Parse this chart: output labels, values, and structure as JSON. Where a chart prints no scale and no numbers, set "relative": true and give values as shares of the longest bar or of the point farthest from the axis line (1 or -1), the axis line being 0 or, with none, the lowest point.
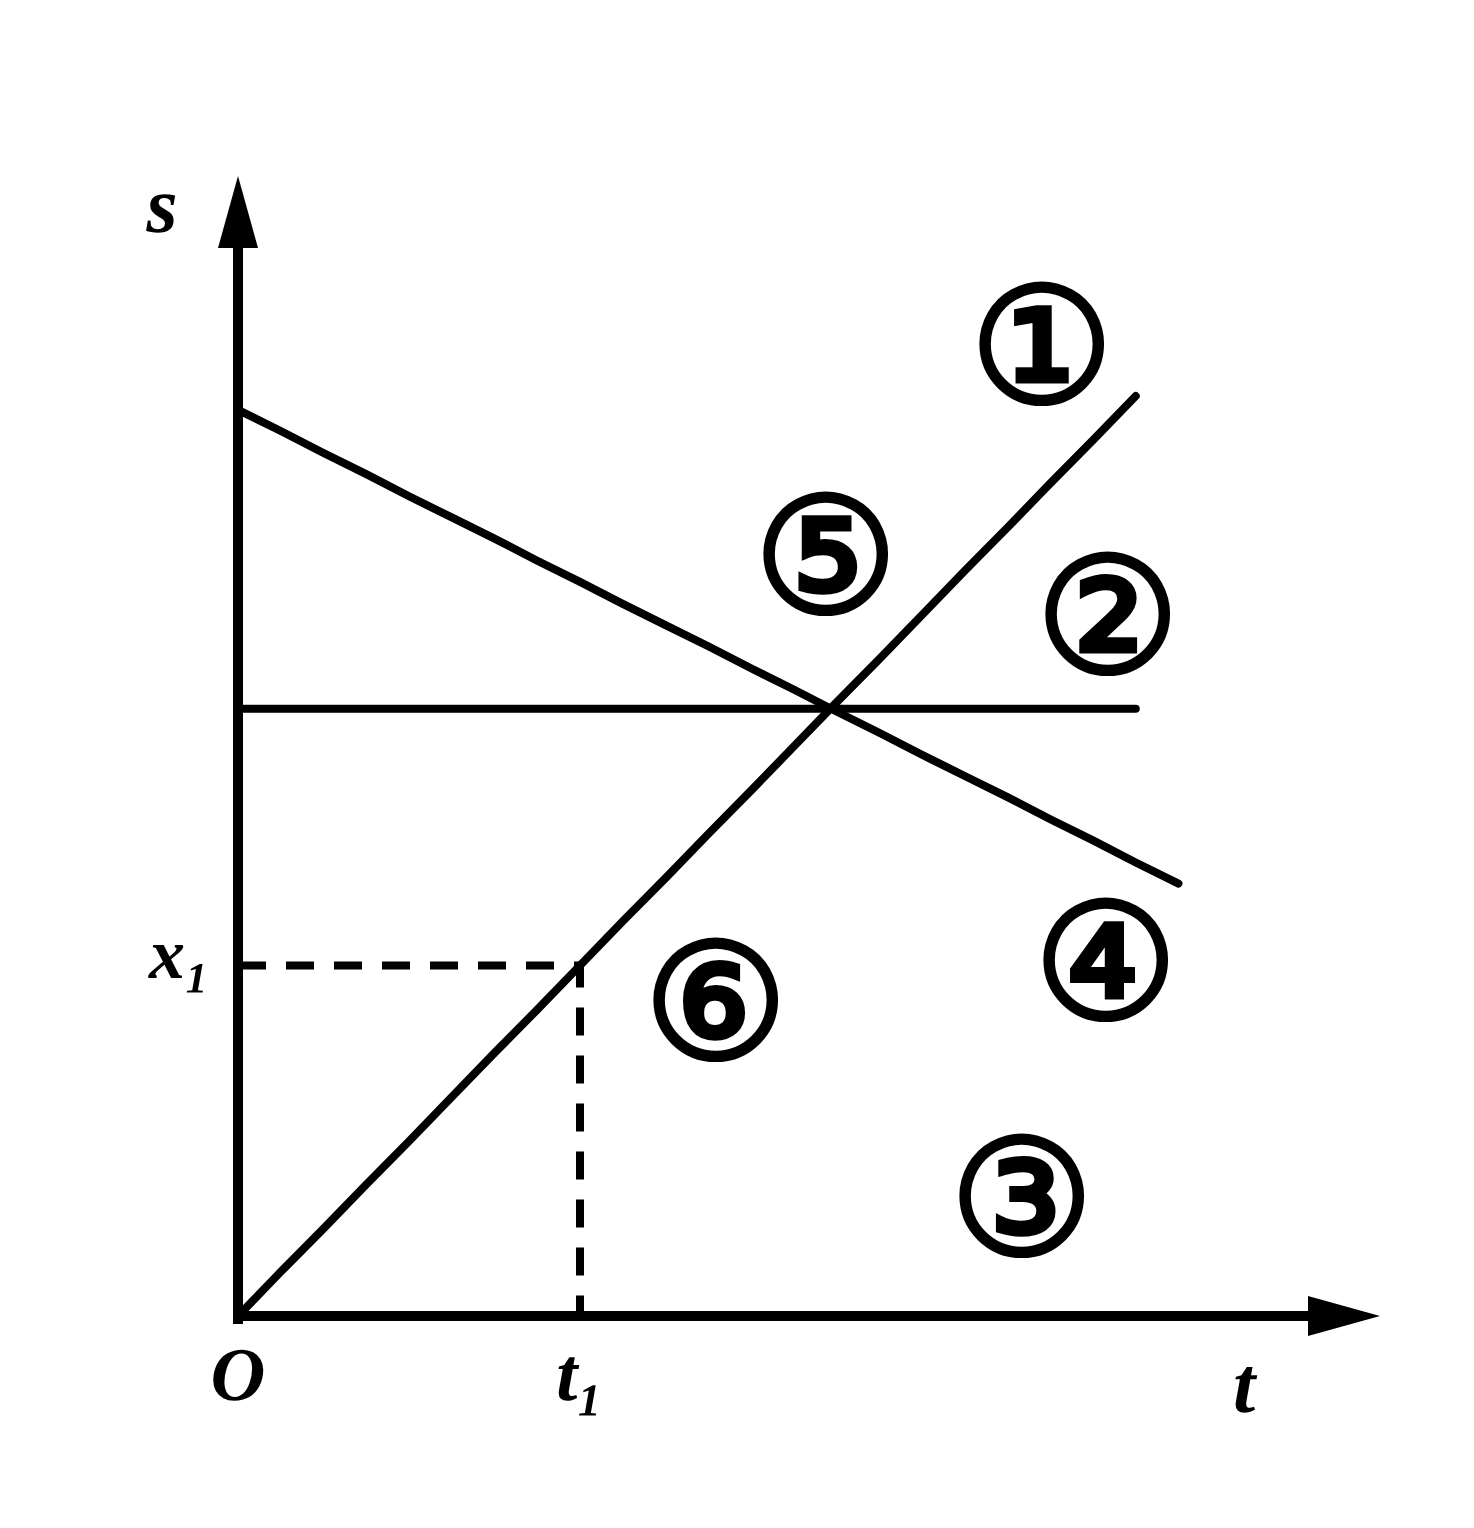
{
  "chart_data": {
    "type": "line",
    "relative": true,
    "xlabel": "t",
    "ylabel": "s",
    "line_style": "solid",
    "categories": [
      "O",
      null,
      null,
      null,
      null,
      null,
      null,
      null,
      "t₁",
      null,
      null,
      null,
      null,
      null,
      null,
      null,
      null,
      null,
      null,
      null,
      null,
      null,
      null
    ],
    "series": [
      {
        "color": "#000000",
        "values": [
          0,
          0.048,
          0.095,
          0.143,
          0.19,
          0.238,
          0.286,
          0.333,
          0.381,
          0.429,
          0.476,
          0.524,
          0.571,
          0.619,
          0.667,
          0.714,
          0.762,
          0.81,
          0.857,
          0.905,
          0.952,
          1,
          null
        ]
      },
      {
        "color": "#000000",
        "values": [
          0.66,
          0.66,
          0.66,
          0.66,
          0.66,
          0.66,
          0.66,
          0.66,
          0.66,
          0.66,
          0.66,
          0.66,
          0.66,
          0.66,
          0.66,
          0.66,
          0.66,
          0.66,
          0.66,
          0.66,
          0.66,
          0.66,
          null
        ]
      },
      {
        "color": "#000000",
        "values": [
          0.985,
          0.962,
          0.938,
          0.915,
          0.891,
          0.868,
          0.845,
          0.821,
          0.798,
          0.774,
          0.751,
          0.728,
          0.704,
          0.681,
          0.657,
          0.634,
          0.61,
          0.587,
          0.564,
          0.54,
          0.517,
          0.493,
          0.47
        ]
      },
      {
        "color": "#000000",
        "type": "step",
        "line_style": "dashed",
        "values": [
          0.381,
          0.381,
          0.381,
          0.381,
          0.381,
          0.381,
          0.381,
          0.381,
          0,
          null,
          null,
          null,
          null,
          null,
          null,
          null,
          null,
          null,
          null,
          null,
          null,
          null,
          null
        ]
      }
    ],
    "annotations": [
      "x₁",
      "①",
      "②",
      "③",
      "④",
      "⑤",
      "⑥"
    ]
  }
}
